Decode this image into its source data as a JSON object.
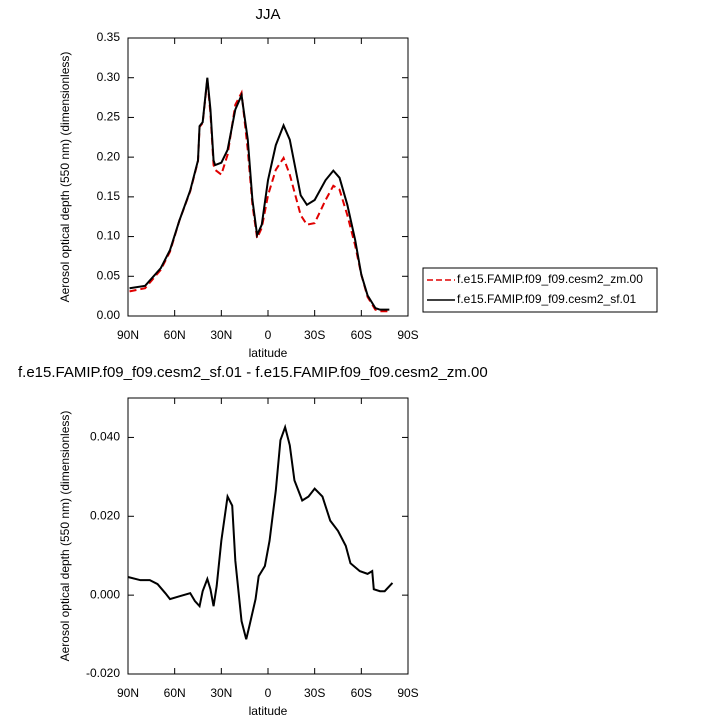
{
  "chart_data": [
    {
      "type": "line",
      "title": "JJA",
      "xlabel": "latitude",
      "ylabel": "Aerosol optical depth (550 nm) (dimensionless)",
      "x": [
        89,
        79,
        69,
        63,
        57,
        50,
        45,
        44,
        42,
        39,
        37,
        35,
        34,
        30,
        26,
        21,
        17,
        13,
        10,
        7,
        4,
        0,
        -5,
        -10,
        -14,
        -21,
        -25,
        -30,
        -37,
        -42,
        -46,
        -51,
        -56,
        -60,
        -64,
        -69,
        -72,
        -78
      ],
      "series": [
        {
          "name": "f.e15.FAMIP.f09_f09.cesm2_zm.00",
          "color": "#e00000",
          "style": "dashed",
          "values": [
            0.031,
            0.035,
            0.058,
            0.081,
            0.12,
            0.157,
            0.195,
            0.238,
            0.243,
            0.298,
            0.255,
            0.19,
            0.184,
            0.178,
            0.203,
            0.266,
            0.281,
            0.209,
            0.14,
            0.098,
            0.111,
            0.152,
            0.184,
            0.199,
            0.178,
            0.127,
            0.115,
            0.117,
            0.146,
            0.164,
            0.159,
            0.127,
            0.089,
            0.052,
            0.024,
            0.008,
            0.006,
            0.006
          ]
        },
        {
          "name": "f.e15.FAMIP.f09_f09.cesm2_sf.01",
          "color": "#000000",
          "style": "solid",
          "values": [
            0.035,
            0.038,
            0.06,
            0.083,
            0.12,
            0.158,
            0.196,
            0.239,
            0.244,
            0.3,
            0.26,
            0.196,
            0.19,
            0.193,
            0.209,
            0.26,
            0.278,
            0.222,
            0.146,
            0.102,
            0.115,
            0.171,
            0.215,
            0.24,
            0.222,
            0.152,
            0.14,
            0.146,
            0.171,
            0.183,
            0.174,
            0.14,
            0.096,
            0.052,
            0.026,
            0.01,
            0.008,
            0.008
          ]
        }
      ],
      "xlim": [
        90,
        -90
      ],
      "xticks": [
        {
          "value": 90,
          "label": "90N"
        },
        {
          "value": 60,
          "label": "60N"
        },
        {
          "value": 30,
          "label": "30N"
        },
        0,
        {
          "value": -30,
          "label": "30S"
        },
        {
          "value": -60,
          "label": "60S"
        },
        {
          "value": -90,
          "label": "90S"
        }
      ],
      "ylim": [
        0,
        0.35
      ],
      "yticks": [
        {
          "value": 0,
          "label": "0.00"
        },
        {
          "value": 0.05,
          "label": "0.05"
        },
        {
          "value": 0.1,
          "label": "0.10"
        },
        {
          "value": 0.15,
          "label": "0.15"
        },
        {
          "value": 0.2,
          "label": "0.20"
        },
        {
          "value": 0.25,
          "label": "0.25"
        },
        {
          "value": 0.3,
          "label": "0.30"
        },
        {
          "value": 0.35,
          "label": "0.35"
        }
      ],
      "legend": "right"
    },
    {
      "type": "line",
      "title": "f.e15.FAMIP.f09_f09.cesm2_sf.01 - f.e15.FAMIP.f09_f09.cesm2_zm.00",
      "xlabel": "latitude",
      "ylabel": "Aerosol optical depth (550 nm) (dimensionless)",
      "x": [
        90,
        82,
        76,
        71,
        66,
        63,
        57,
        50,
        47,
        44,
        42,
        39,
        37,
        35,
        33,
        30,
        26,
        23,
        21,
        17,
        14,
        12,
        8,
        6,
        4,
        2,
        -1,
        -5,
        -8,
        -11,
        -14,
        -17,
        -22,
        -26,
        -30,
        -35,
        -40,
        -45,
        -50,
        -53,
        -59,
        -64,
        -67,
        -68,
        -72,
        -75,
        -80
      ],
      "values": [
        0.0046,
        0.0038,
        0.0038,
        0.0028,
        0.0005,
        -0.001,
        -0.0003,
        0.0005,
        -0.0015,
        -0.0028,
        0.001,
        0.0041,
        0.0015,
        -0.0028,
        0.0023,
        0.0138,
        0.025,
        0.0227,
        0.0087,
        -0.0066,
        -0.0112,
        -0.0079,
        -0.001,
        0.0048,
        0.0061,
        0.0074,
        0.0138,
        0.0265,
        0.0393,
        0.0426,
        0.038,
        0.0291,
        0.024,
        0.025,
        0.027,
        0.025,
        0.0189,
        0.0163,
        0.0125,
        0.0081,
        0.0061,
        0.0054,
        0.0061,
        0.0015,
        0.001,
        0.001,
        0.0031
      ],
      "color": "#000000",
      "xlim": [
        90,
        -90
      ],
      "xticks": [
        {
          "value": 90,
          "label": "90N"
        },
        {
          "value": 60,
          "label": "60N"
        },
        {
          "value": 30,
          "label": "30N"
        },
        0,
        {
          "value": -30,
          "label": "30S"
        },
        {
          "value": -60,
          "label": "60S"
        },
        {
          "value": -90,
          "label": "90S"
        }
      ],
      "ylim": [
        -0.02,
        0.05
      ],
      "yticks": [
        {
          "value": -0.02,
          "label": "-0.020"
        },
        {
          "value": 0,
          "label": "0.000"
        },
        {
          "value": 0.02,
          "label": "0.020"
        },
        {
          "value": 0.04,
          "label": "0.040"
        }
      ]
    }
  ]
}
